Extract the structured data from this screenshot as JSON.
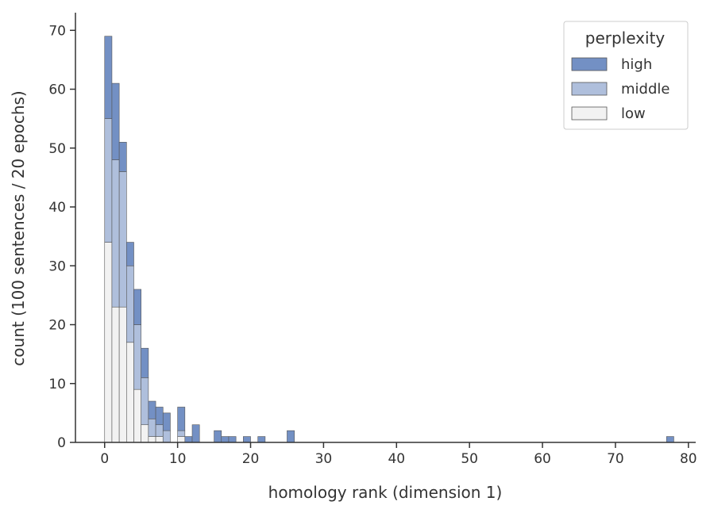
{
  "chart_data": {
    "type": "bar",
    "subtype": "stacked histogram",
    "xlabel": "homology rank (dimension 1)",
    "ylabel": "count (100 sentences / 20 epochs)",
    "xlim": [
      -4,
      81
    ],
    "ylim": [
      0,
      73
    ],
    "x_ticks": [
      0,
      10,
      20,
      30,
      40,
      50,
      60,
      70,
      80
    ],
    "y_ticks": [
      0,
      10,
      20,
      30,
      40,
      50,
      60,
      70
    ],
    "bin_width": 1,
    "legend_title": "perplexity",
    "legend_position": "top-right",
    "series": [
      {
        "name": "low",
        "color": "#f2f2f2",
        "x": [
          0,
          1,
          2,
          3,
          4,
          5,
          6,
          7,
          10
        ],
        "values": [
          34,
          23,
          23,
          17,
          9,
          3,
          1,
          1,
          1
        ]
      },
      {
        "name": "middle",
        "color": "#afbfdc",
        "x": [
          0,
          1,
          2,
          3,
          4,
          5,
          6,
          7,
          8,
          10
        ],
        "values": [
          21,
          25,
          23,
          13,
          11,
          8,
          3,
          2,
          2,
          1
        ]
      },
      {
        "name": "high",
        "color": "#7390c4",
        "x": [
          0,
          1,
          2,
          3,
          4,
          5,
          6,
          7,
          8,
          10,
          11,
          12,
          15,
          16,
          17,
          19,
          21,
          25,
          77
        ],
        "values": [
          14,
          13,
          5,
          4,
          6,
          5,
          3,
          3,
          3,
          4,
          1,
          3,
          2,
          1,
          1,
          1,
          1,
          2,
          1
        ]
      }
    ]
  }
}
